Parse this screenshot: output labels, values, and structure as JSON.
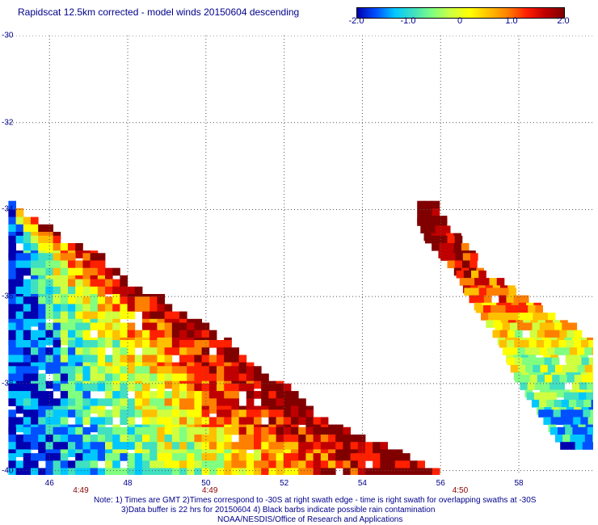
{
  "title": "Rapidscat 12.5km corrected - model winds 20150604 descending",
  "colorbar": {
    "ticks": [
      "-2.0",
      "-1.0",
      "0",
      "1.0",
      "2.0"
    ],
    "tick_values": [
      -2.0,
      -1.0,
      0,
      1.0,
      2.0
    ],
    "min": -2.0,
    "max": 2.0,
    "colors": [
      "#0000b0",
      "#0050ff",
      "#00c8ff",
      "#40e0c0",
      "#80ff80",
      "#d0ff40",
      "#ffff00",
      "#ffc000",
      "#ff8000",
      "#ff2000",
      "#c00000",
      "#800000"
    ]
  },
  "axes": {
    "lat_labels": [
      "-30",
      "-32",
      "-34",
      "-36",
      "-38",
      "-40"
    ],
    "lat_values": [
      -30,
      -32,
      -34,
      -36,
      -38,
      -40
    ],
    "lon_labels": [
      "46",
      "48",
      "50",
      "52",
      "54",
      "56",
      "58"
    ],
    "lon_values": [
      46,
      48,
      50,
      52,
      54,
      56,
      58
    ],
    "lon_range": [
      44.9,
      59.9
    ],
    "lat_range": [
      -40.1,
      -30.0
    ],
    "grid": true
  },
  "time_labels": [
    {
      "text": "4:49",
      "lon": 46.8
    },
    {
      "text": "4:49",
      "lon": 50.1
    },
    {
      "text": "4:50",
      "lon": 56.5
    }
  ],
  "notes": [
    "Note: 1) Times are GMT 2)Times correspond to -30S at right swath edge - time is right swath for overlapping swaths at -30S",
    "3)Data buffer is 22 hrs for 20150604 4) Black barbs indicate possible rain contamination",
    "NOAA/NESDIS/Office of Research and Applications"
  ],
  "swaths": [
    {
      "name": "",
      "rows": [
        {
          "lat": -33.8,
          "lon_start": 44.95,
          "lon_end": 45.0
        },
        {
          "lat": -34.0,
          "lon_start": 44.95,
          "lon_end": 45.3
        },
        {
          "lat": -34.6,
          "lon_start": 44.95,
          "lon_end": 46.4
        },
        {
          "lat": -35.0,
          "lon_start": 44.95,
          "lon_end": 47.3
        },
        {
          "lat": -35.6,
          "lon_start": 44.95,
          "lon_end": 47.9
        },
        {
          "lat": -36.0,
          "lon_start": 44.95,
          "lon_end": 48.9
        },
        {
          "lat": -36.6,
          "lon_start": 44.95,
          "lon_end": 49.9
        },
        {
          "lat": -37.0,
          "lon_start": 44.95,
          "lon_end": 50.6
        },
        {
          "lat": -37.6,
          "lon_start": 44.95,
          "lon_end": 51.3
        },
        {
          "lat": -38.0,
          "lon_start": 44.95,
          "lon_end": 52.0
        },
        {
          "lat": -38.6,
          "lon_start": 44.95,
          "lon_end": 52.7
        },
        {
          "lat": -39.0,
          "lon_start": 44.95,
          "lon_end": 53.6
        },
        {
          "lat": -39.6,
          "lon_start": 44.95,
          "lon_end": 55.2
        },
        {
          "lat": -40.0,
          "lon_start": 44.95,
          "lon_end": 55.9
        }
      ]
    },
    {
      "name": "",
      "rows": [
        {
          "lat": -33.8,
          "lon_start": 55.4,
          "lon_end": 55.8
        },
        {
          "lat": -34.2,
          "lon_start": 55.4,
          "lon_end": 56.0
        },
        {
          "lat": -34.6,
          "lon_start": 55.6,
          "lon_end": 56.5
        },
        {
          "lat": -35.0,
          "lon_start": 56.0,
          "lon_end": 56.8
        },
        {
          "lat": -35.4,
          "lon_start": 56.4,
          "lon_end": 57.1
        },
        {
          "lat": -35.8,
          "lon_start": 56.6,
          "lon_end": 57.9
        },
        {
          "lat": -36.2,
          "lon_start": 56.9,
          "lon_end": 58.6
        },
        {
          "lat": -36.6,
          "lon_start": 57.2,
          "lon_end": 59.3
        },
        {
          "lat": -37.0,
          "lon_start": 57.5,
          "lon_end": 59.9
        },
        {
          "lat": -37.4,
          "lon_start": 57.7,
          "lon_end": 59.9
        },
        {
          "lat": -37.8,
          "lon_start": 57.9,
          "lon_end": 59.9
        },
        {
          "lat": -38.2,
          "lon_start": 58.2,
          "lon_end": 59.9
        },
        {
          "lat": -38.6,
          "lon_start": 58.5,
          "lon_end": 59.9
        },
        {
          "lat": -39.0,
          "lon_start": 58.8,
          "lon_end": 59.9
        },
        {
          "lat": -39.4,
          "lon_start": 59.1,
          "lon_end": 59.9
        }
      ]
    }
  ]
}
